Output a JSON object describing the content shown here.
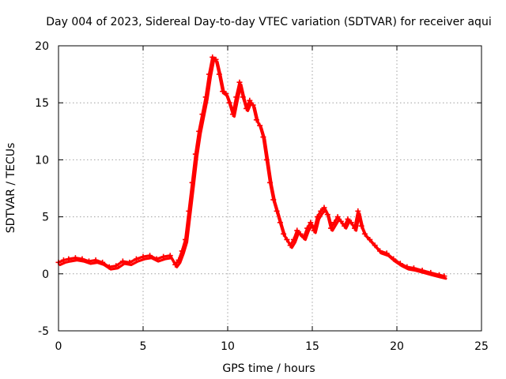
{
  "chart_data": {
    "type": "scatter",
    "title": "Day 004 of 2023, Sidereal Day-to-day VTEC variation (SDTVAR) for receiver aqui",
    "xlabel": "GPS time / hours",
    "ylabel": "SDTVAR / TECUs",
    "xlim": [
      0,
      25
    ],
    "ylim": [
      -5,
      20
    ],
    "x_ticks": [
      0,
      5,
      10,
      15,
      20,
      25
    ],
    "y_ticks": [
      -5,
      0,
      5,
      10,
      15,
      20
    ],
    "x_tick_labels": [
      "0",
      "5",
      "10",
      "15",
      "20",
      "25"
    ],
    "y_tick_labels": [
      "-5",
      "0",
      "5",
      "10",
      "15",
      "20"
    ],
    "grid": true,
    "marker": "plus",
    "series": [
      {
        "name": "SDTVAR",
        "color": "#ff0000",
        "points": [
          [
            0.0,
            1.0
          ],
          [
            0.3,
            1.2
          ],
          [
            0.6,
            1.3
          ],
          [
            1.0,
            1.4
          ],
          [
            1.4,
            1.3
          ],
          [
            1.8,
            1.1
          ],
          [
            2.2,
            1.2
          ],
          [
            2.6,
            1.0
          ],
          [
            3.0,
            0.6
          ],
          [
            3.4,
            0.7
          ],
          [
            3.8,
            1.1
          ],
          [
            4.2,
            1.0
          ],
          [
            4.6,
            1.3
          ],
          [
            5.0,
            1.5
          ],
          [
            5.4,
            1.6
          ],
          [
            5.8,
            1.3
          ],
          [
            6.2,
            1.5
          ],
          [
            6.6,
            1.6
          ],
          [
            6.9,
            0.8
          ],
          [
            7.1,
            1.2
          ],
          [
            7.3,
            2.0
          ],
          [
            7.5,
            3.0
          ],
          [
            7.7,
            5.5
          ],
          [
            7.9,
            8.0
          ],
          [
            8.1,
            10.5
          ],
          [
            8.3,
            12.5
          ],
          [
            8.5,
            14.0
          ],
          [
            8.7,
            15.5
          ],
          [
            8.9,
            17.5
          ],
          [
            9.1,
            19.0
          ],
          [
            9.3,
            18.8
          ],
          [
            9.5,
            17.5
          ],
          [
            9.7,
            16.0
          ],
          [
            9.9,
            15.8
          ],
          [
            10.1,
            15.0
          ],
          [
            10.3,
            14.0
          ],
          [
            10.5,
            15.5
          ],
          [
            10.7,
            16.8
          ],
          [
            10.9,
            15.5
          ],
          [
            11.1,
            14.5
          ],
          [
            11.3,
            15.2
          ],
          [
            11.5,
            14.8
          ],
          [
            11.7,
            13.5
          ],
          [
            11.9,
            13.0
          ],
          [
            12.1,
            12.0
          ],
          [
            12.3,
            10.0
          ],
          [
            12.5,
            8.0
          ],
          [
            12.7,
            6.5
          ],
          [
            12.9,
            5.5
          ],
          [
            13.1,
            4.5
          ],
          [
            13.3,
            3.5
          ],
          [
            13.5,
            3.0
          ],
          [
            13.7,
            2.5
          ],
          [
            13.9,
            3.0
          ],
          [
            14.1,
            3.8
          ],
          [
            14.3,
            3.5
          ],
          [
            14.5,
            3.2
          ],
          [
            14.7,
            4.0
          ],
          [
            14.9,
            4.5
          ],
          [
            15.1,
            3.8
          ],
          [
            15.3,
            5.0
          ],
          [
            15.5,
            5.5
          ],
          [
            15.7,
            5.8
          ],
          [
            15.9,
            5.2
          ],
          [
            16.1,
            4.0
          ],
          [
            16.3,
            4.5
          ],
          [
            16.5,
            5.0
          ],
          [
            16.7,
            4.6
          ],
          [
            16.9,
            4.2
          ],
          [
            17.1,
            4.8
          ],
          [
            17.3,
            4.5
          ],
          [
            17.5,
            4.0
          ],
          [
            17.7,
            5.5
          ],
          [
            17.9,
            4.2
          ],
          [
            18.1,
            3.5
          ],
          [
            18.4,
            3.0
          ],
          [
            18.7,
            2.5
          ],
          [
            19.0,
            2.0
          ],
          [
            19.4,
            1.8
          ],
          [
            19.8,
            1.3
          ],
          [
            20.2,
            0.9
          ],
          [
            20.6,
            0.6
          ],
          [
            21.0,
            0.5
          ],
          [
            21.5,
            0.3
          ],
          [
            22.0,
            0.1
          ],
          [
            22.5,
            -0.1
          ],
          [
            22.8,
            -0.2
          ]
        ]
      }
    ]
  }
}
